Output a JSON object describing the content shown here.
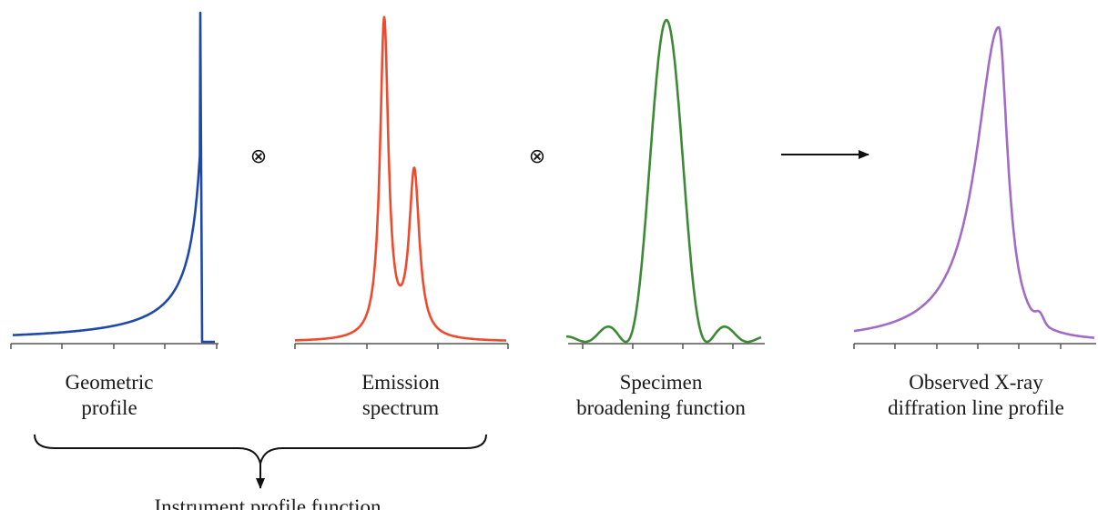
{
  "panels": [
    {
      "id": "geometric",
      "label_lines": [
        "Geometric",
        "profile"
      ],
      "color": "#1f49a8"
    },
    {
      "id": "emission",
      "label_lines": [
        "Emission",
        "spectrum"
      ],
      "color": "#ef4a2e"
    },
    {
      "id": "specimen",
      "label_lines": [
        "Specimen",
        "broadening function"
      ],
      "color": "#3c8a35"
    },
    {
      "id": "observed",
      "label_lines": [
        "Observed X-ray",
        "diffration line profile"
      ],
      "color": "#a16bc6"
    }
  ],
  "operators": {
    "convolve_1": "⊗",
    "convolve_2": "⊗"
  },
  "result_arrow": "right-arrow",
  "instrument": {
    "label": "Instrument profile function"
  },
  "axis_color": "#555555"
}
